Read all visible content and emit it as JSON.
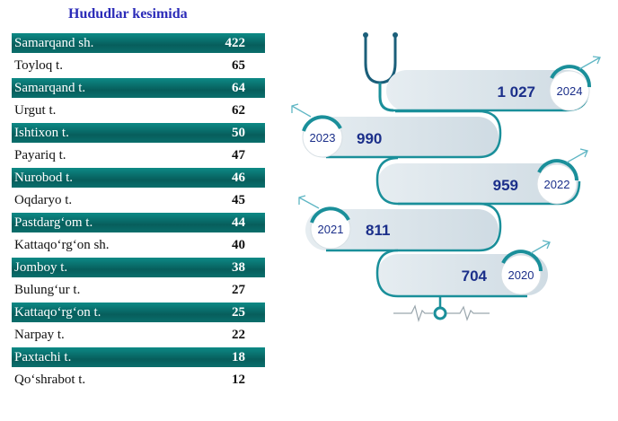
{
  "title": "Hududlar kesimida",
  "regions": [
    {
      "name": "Samarqand sh.",
      "value": "422"
    },
    {
      "name": "Toyloq t.",
      "value": "65"
    },
    {
      "name": "Samarqand t.",
      "value": "64"
    },
    {
      "name": "Urgut t.",
      "value": "62"
    },
    {
      "name": "Ishtixon t.",
      "value": "50"
    },
    {
      "name": "Payariq t.",
      "value": "47"
    },
    {
      "name": "Nurobod t.",
      "value": "46"
    },
    {
      "name": "Oqdaryo t.",
      "value": "45"
    },
    {
      "name": "Pastdarg‘om t.",
      "value": "44"
    },
    {
      "name": "Kattaqo‘rg‘on sh.",
      "value": "40"
    },
    {
      "name": "Jomboy t.",
      "value": "38"
    },
    {
      "name": "Bulung‘ur t.",
      "value": "27"
    },
    {
      "name": "Kattaqo‘rg‘on t.",
      "value": "25"
    },
    {
      "name": "Narpay t.",
      "value": "22"
    },
    {
      "name": "Paxtachi t.",
      "value": "18"
    },
    {
      "name": "Qo‘shrabot t.",
      "value": "12"
    }
  ],
  "years": [
    {
      "year": "2024",
      "value": "1 027"
    },
    {
      "year": "2023",
      "value": "990"
    },
    {
      "year": "2022",
      "value": "959"
    },
    {
      "year": "2021",
      "value": "811"
    },
    {
      "year": "2020",
      "value": "704"
    }
  ],
  "colors": {
    "band": "#0b7a77",
    "title": "#2b2bb8",
    "track": "#d8e3ea",
    "accent": "#1a8f9a",
    "numbers": "#1b2f8a"
  },
  "icons": {
    "stethoscope": "stethoscope-icon",
    "heartbeat": "heartbeat-line-icon"
  }
}
